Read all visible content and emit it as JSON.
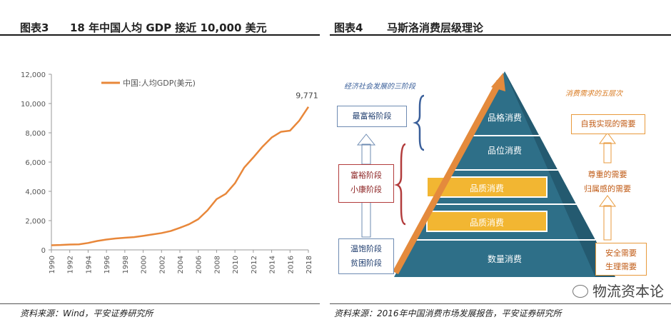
{
  "left_panel": {
    "figure_num": "图表3",
    "title": "18 年中国人均 GDP 接近 10,000 美元",
    "source": "资料来源：Wind，平安证券研究所"
  },
  "right_panel": {
    "figure_num": "图表4",
    "title": "马斯洛消费层级理论",
    "source": "资料来源：2016年中国消费市场发展报告，平安证券研究所",
    "left_header": "经济社会发展的三阶段",
    "right_header": "消费需求的五层次",
    "left_boxes": [
      "最富裕阶段",
      "富裕阶段",
      "小康阶段",
      "温饱阶段",
      "贫困阶段"
    ],
    "pyramid_levels": [
      "品格消费",
      "品位消费",
      "品质消费",
      "品质消费",
      "数量消费"
    ],
    "right_boxes": [
      "自我实现的需要",
      "尊重的需要",
      "归属感的需要",
      "安全需要",
      "生理需要"
    ],
    "colors": {
      "pyramid": "#2e6f88",
      "highlight": "#f2b632",
      "arrow": "#e48a3c",
      "left_box": "#3a5f9a",
      "mid_box": "#b23c3c",
      "right_box": "#e89a3c"
    }
  },
  "watermark": "物流资本论",
  "chart_data": {
    "type": "line",
    "legend": "中国:人均GDP(美元)",
    "legend_position": "top-left",
    "x_ticks": [
      "1990",
      "1992",
      "1994",
      "1996",
      "1998",
      "2000",
      "2002",
      "2004",
      "2006",
      "2008",
      "2010",
      "2012",
      "2014",
      "2016",
      "2018"
    ],
    "y_ticks": [
      "0",
      "2,000",
      "4,000",
      "6,000",
      "8,000",
      "10,000",
      "12,000"
    ],
    "ylim": [
      0,
      12000
    ],
    "xlim": [
      1990,
      2018
    ],
    "grid": false,
    "color": "#e8873a",
    "annotation": "9,771",
    "series": [
      {
        "name": "中国:人均GDP(美元)",
        "x": [
          1990,
          1991,
          1992,
          1993,
          1994,
          1995,
          1996,
          1997,
          1998,
          1999,
          2000,
          2001,
          2002,
          2003,
          2004,
          2005,
          2006,
          2007,
          2008,
          2009,
          2010,
          2011,
          2012,
          2013,
          2014,
          2015,
          2016,
          2017,
          2018
        ],
        "values": [
          318,
          333,
          366,
          377,
          473,
          610,
          709,
          782,
          829,
          873,
          959,
          1053,
          1149,
          1289,
          1509,
          1753,
          2099,
          2694,
          3468,
          3832,
          4550,
          5618,
          6317,
          7051,
          7679,
          8067,
          8148,
          8827,
          9771
        ]
      }
    ]
  }
}
